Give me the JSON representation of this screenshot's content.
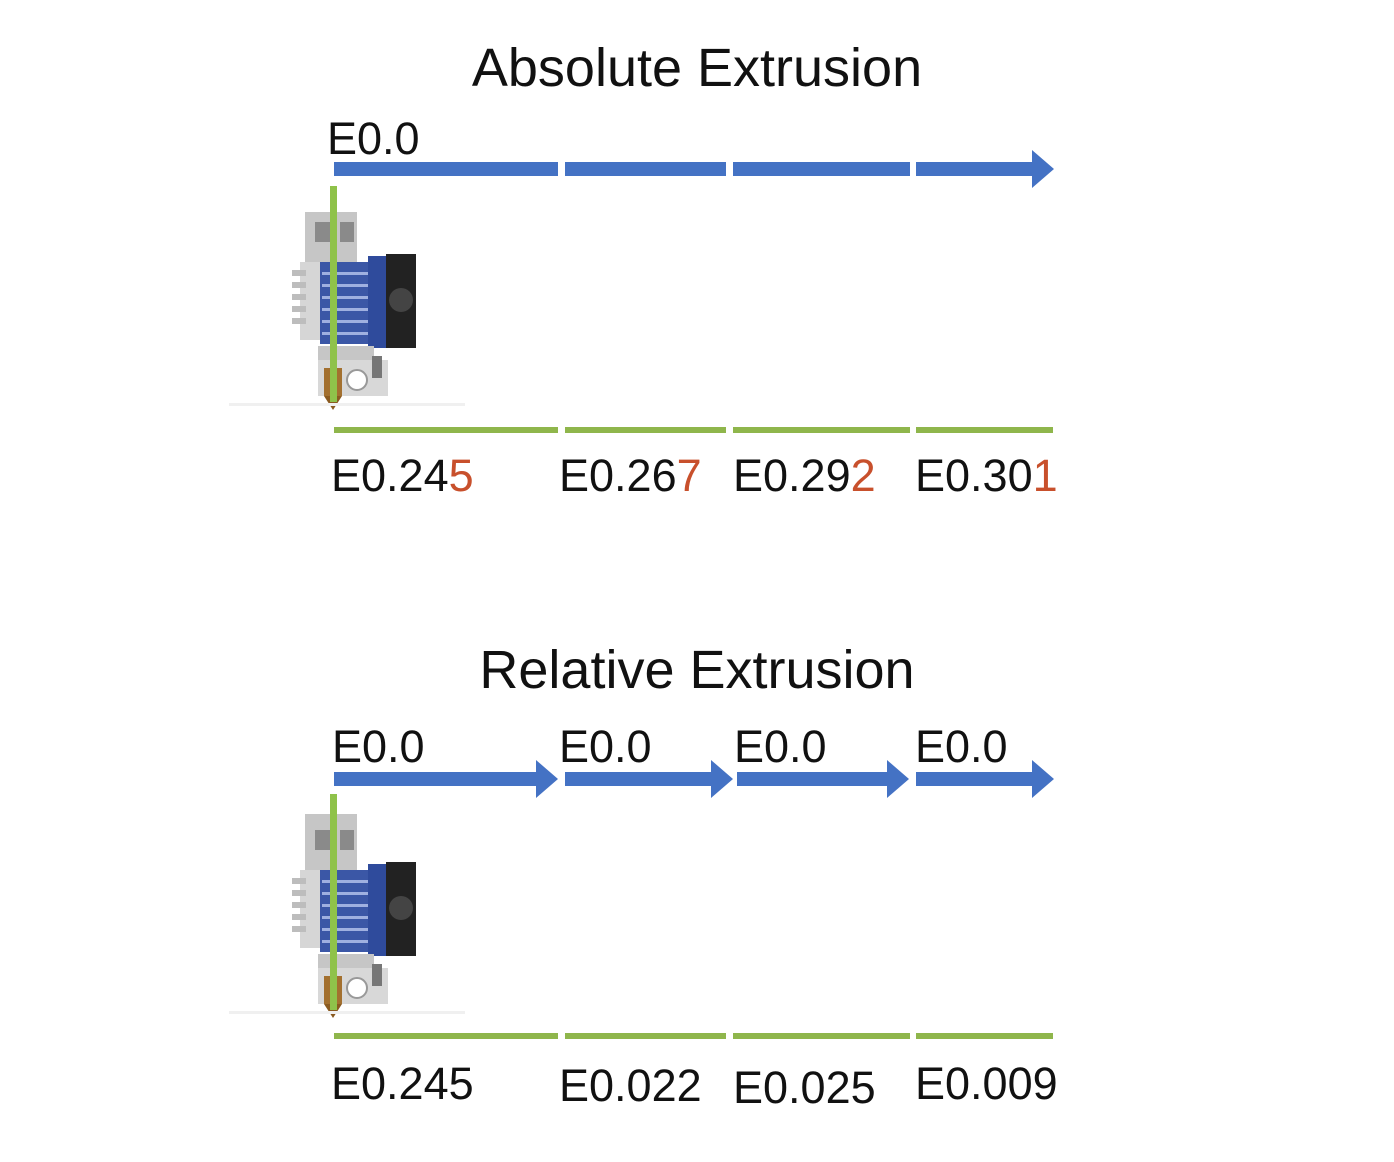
{
  "colors": {
    "move_arrow": "#4472c4",
    "extruded_line": "#8fb64c",
    "highlight_digit": "#c8502c",
    "filament": "#8fc24a"
  },
  "icons": {
    "hotend": "hotend-extruder-icon"
  },
  "absolute": {
    "title": "Absolute Extrusion",
    "start_label": "E0.0",
    "segment_values": [
      {
        "base": "E0.24",
        "highlight": "5"
      },
      {
        "base": "E0.26",
        "highlight": "7"
      },
      {
        "base": "E0.29",
        "highlight": "2"
      },
      {
        "base": "E0.30",
        "highlight": "1"
      }
    ]
  },
  "relative": {
    "title": "Relative Extrusion",
    "move_labels": [
      "E0.0",
      "E0.0",
      "E0.0",
      "E0.0"
    ],
    "segment_values": [
      "E0.245",
      "E0.022",
      "E0.025",
      "E0.009"
    ]
  }
}
